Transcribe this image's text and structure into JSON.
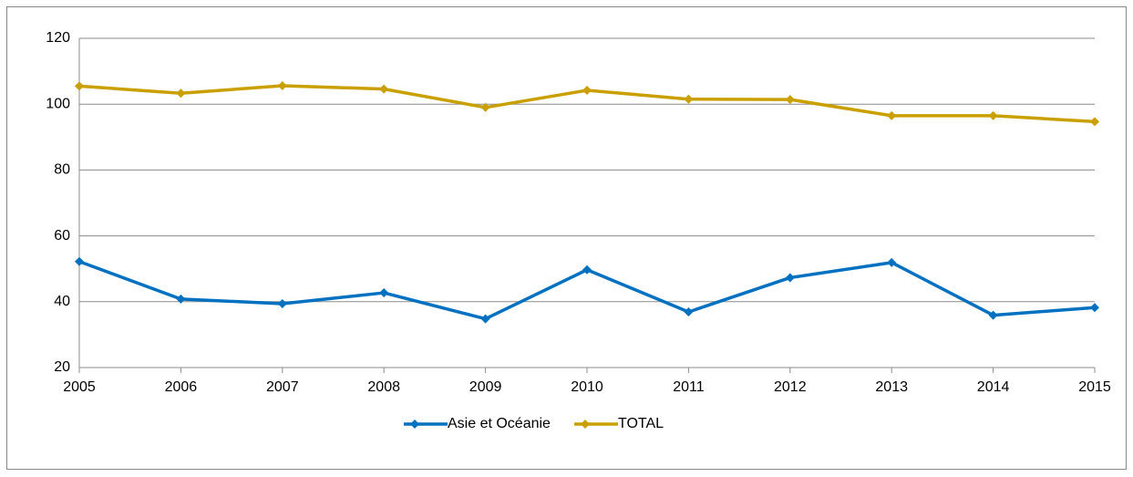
{
  "chart_data": {
    "type": "line",
    "x": [
      2005,
      2006,
      2007,
      2008,
      2009,
      2010,
      2011,
      2012,
      2013,
      2014,
      2015
    ],
    "xlim": [
      2005,
      2015
    ],
    "xticks": [
      2005,
      2006,
      2007,
      2008,
      2009,
      2010,
      2011,
      2012,
      2013,
      2014,
      2015
    ],
    "ylim": [
      20,
      120
    ],
    "yticks": [
      20,
      40,
      60,
      80,
      100,
      120
    ],
    "grid": true,
    "legend": "bottom",
    "series": [
      {
        "name": "Asie et Océanie",
        "color": "#0070c0",
        "values": [
          52.2,
          40.8,
          39.4,
          42.7,
          34.8,
          49.7,
          36.9,
          47.3,
          51.9,
          35.9,
          38.2
        ]
      },
      {
        "name": "TOTAL",
        "color": "#c9a000",
        "values": [
          105.5,
          103.3,
          105.6,
          104.6,
          99.0,
          104.2,
          101.5,
          101.4,
          96.5,
          96.5,
          94.7
        ]
      }
    ]
  }
}
